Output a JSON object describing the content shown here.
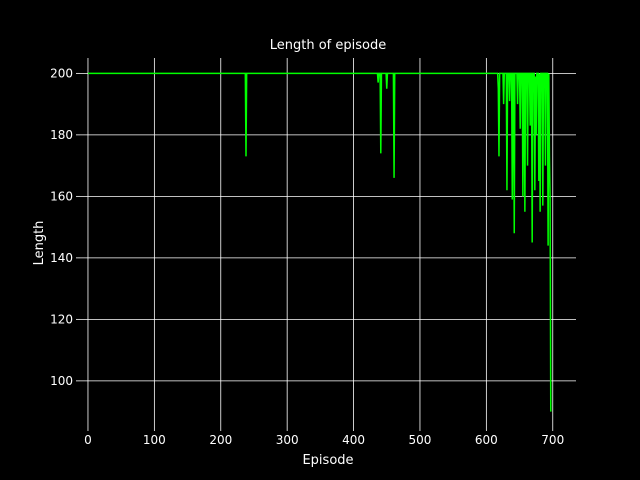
{
  "chart_data": {
    "type": "line",
    "title": "Length of episode",
    "xlabel": "Episode",
    "ylabel": "Length",
    "xlim": [
      -12,
      735
    ],
    "ylim": [
      85,
      205
    ],
    "xticks": [
      0,
      100,
      200,
      300,
      400,
      500,
      600,
      700
    ],
    "yticks": [
      100,
      120,
      140,
      160,
      180,
      200
    ],
    "grid": true,
    "series": [
      {
        "color": "#00ff00",
        "points": [
          [
            0,
            200
          ],
          [
            237,
            200
          ],
          [
            238,
            173
          ],
          [
            239,
            200
          ],
          [
            436,
            200
          ],
          [
            437,
            197
          ],
          [
            438,
            200
          ],
          [
            440,
            200
          ],
          [
            441,
            174
          ],
          [
            442,
            200
          ],
          [
            449,
            200
          ],
          [
            450,
            195
          ],
          [
            451,
            200
          ],
          [
            460,
            200
          ],
          [
            461,
            166
          ],
          [
            462,
            200
          ],
          [
            617,
            200
          ],
          [
            618,
            195
          ],
          [
            619,
            173
          ],
          [
            620,
            200
          ],
          [
            625,
            200
          ],
          [
            626,
            190
          ],
          [
            627,
            200
          ],
          [
            630,
            200
          ],
          [
            631,
            162
          ],
          [
            632,
            200
          ],
          [
            634,
            200
          ],
          [
            635,
            191
          ],
          [
            636,
            200
          ],
          [
            638,
            200
          ],
          [
            639,
            159
          ],
          [
            640,
            200
          ],
          [
            641,
            200
          ],
          [
            642,
            148
          ],
          [
            643,
            200
          ],
          [
            646,
            200
          ],
          [
            647,
            190
          ],
          [
            648,
            200
          ],
          [
            650,
            200
          ],
          [
            651,
            182
          ],
          [
            652,
            200
          ],
          [
            654,
            200
          ],
          [
            655,
            160
          ],
          [
            656,
            200
          ],
          [
            657,
            200
          ],
          [
            658,
            155
          ],
          [
            659,
            200
          ],
          [
            661,
            200
          ],
          [
            662,
            170
          ],
          [
            663,
            200
          ],
          [
            665,
            200
          ],
          [
            666,
            183
          ],
          [
            667,
            200
          ],
          [
            668,
            200
          ],
          [
            669,
            145
          ],
          [
            670,
            200
          ],
          [
            672,
            200
          ],
          [
            673,
            162
          ],
          [
            674,
            199
          ],
          [
            675,
            180
          ],
          [
            676,
            200
          ],
          [
            678,
            200
          ],
          [
            679,
            165
          ],
          [
            680,
            200
          ],
          [
            681,
            155
          ],
          [
            682,
            200
          ],
          [
            684,
            200
          ],
          [
            685,
            157
          ],
          [
            686,
            200
          ],
          [
            688,
            200
          ],
          [
            689,
            170
          ],
          [
            690,
            200
          ],
          [
            692,
            200
          ],
          [
            693,
            144
          ],
          [
            694,
            200
          ],
          [
            695,
            173
          ],
          [
            696,
            160
          ],
          [
            697,
            90
          ]
        ]
      }
    ]
  }
}
